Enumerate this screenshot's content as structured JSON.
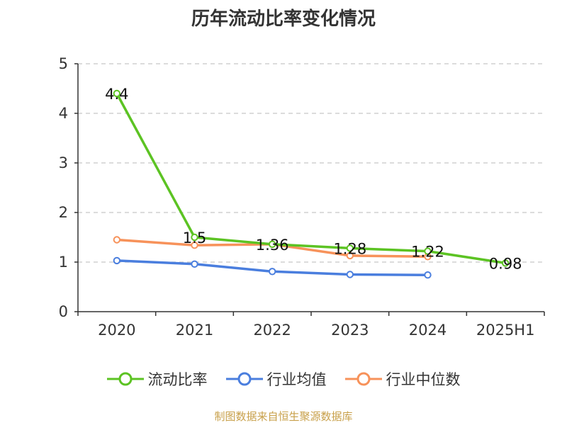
{
  "title": "历年流动比率变化情况",
  "source": "制图数据来自恒生聚源数据库",
  "colors": {
    "current_ratio": "#5cc323",
    "industry_avg": "#4a7ede",
    "industry_median": "#f7925a",
    "grid": "#c8c8c8",
    "axis": "#333333",
    "source": "#c8a04a"
  },
  "chart_data": {
    "type": "line",
    "categories": [
      "2020",
      "2021",
      "2022",
      "2023",
      "2024",
      "2025H1"
    ],
    "ylim": [
      0,
      5
    ],
    "yticks": [
      0,
      1,
      2,
      3,
      4,
      5
    ],
    "grid": true,
    "legend": "bottom",
    "series": [
      {
        "name": "流动比率",
        "color": "#5cc323",
        "values": [
          4.4,
          1.5,
          1.36,
          1.28,
          1.22,
          0.98
        ],
        "labels": [
          "4.4",
          "1.5",
          "1.36",
          "1.28",
          "1.22",
          "0.98"
        ]
      },
      {
        "name": "行业均值",
        "color": "#4a7ede",
        "values": [
          1.03,
          0.96,
          0.81,
          0.75,
          0.74,
          null
        ]
      },
      {
        "name": "行业中位数",
        "color": "#f7925a",
        "values": [
          1.45,
          1.34,
          1.36,
          1.13,
          1.11,
          null
        ]
      }
    ]
  }
}
